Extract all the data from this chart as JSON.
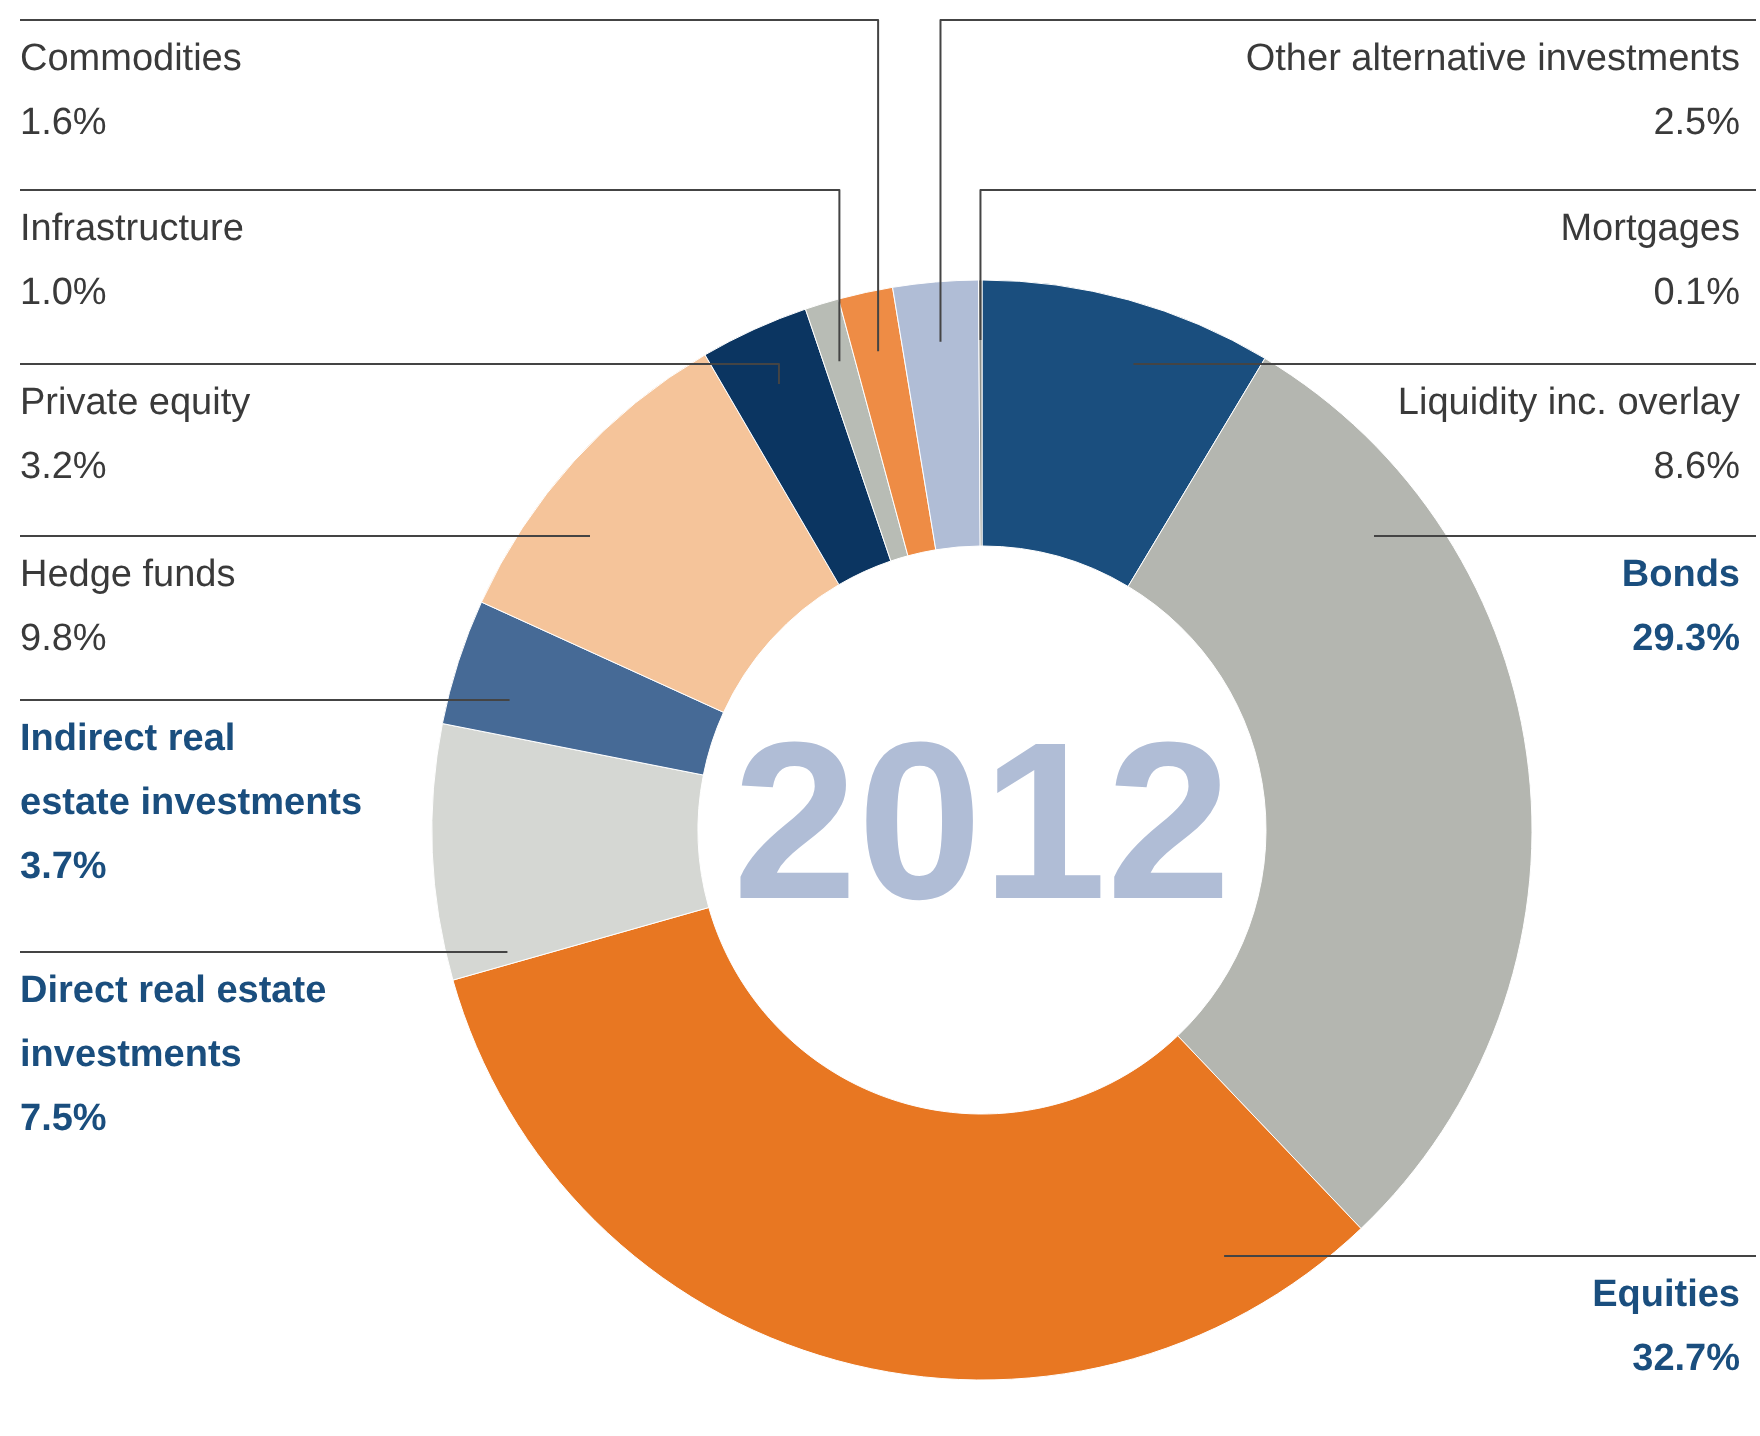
{
  "chart_data": {
    "type": "donut",
    "title": "2012",
    "categories": [
      "Liquidity inc. overlay",
      "Bonds",
      "Equities",
      "Direct real estate investments",
      "Indirect real estate investments",
      "Hedge funds",
      "Private equity",
      "Infrastructure",
      "Commodities",
      "Other alternative investments",
      "Mortgages"
    ],
    "values": [
      8.6,
      29.3,
      32.7,
      7.5,
      3.7,
      9.8,
      3.2,
      1.0,
      1.6,
      2.5,
      0.1
    ],
    "value_labels": [
      "8.6%",
      "29.3%",
      "32.7%",
      "7.5%",
      "3.7%",
      "9.8%",
      "3.2%",
      "1.0%",
      "1.6%",
      "2.5%",
      "0.1%"
    ],
    "colors": [
      "#1a4e7e",
      "#b4b6b0",
      "#e87722",
      "#d5d7d3",
      "#466a96",
      "#f5c49a",
      "#0b3561",
      "#b8bcb5",
      "#ee8c45",
      "#b0bdd6",
      "#8c8f8a"
    ]
  }
}
